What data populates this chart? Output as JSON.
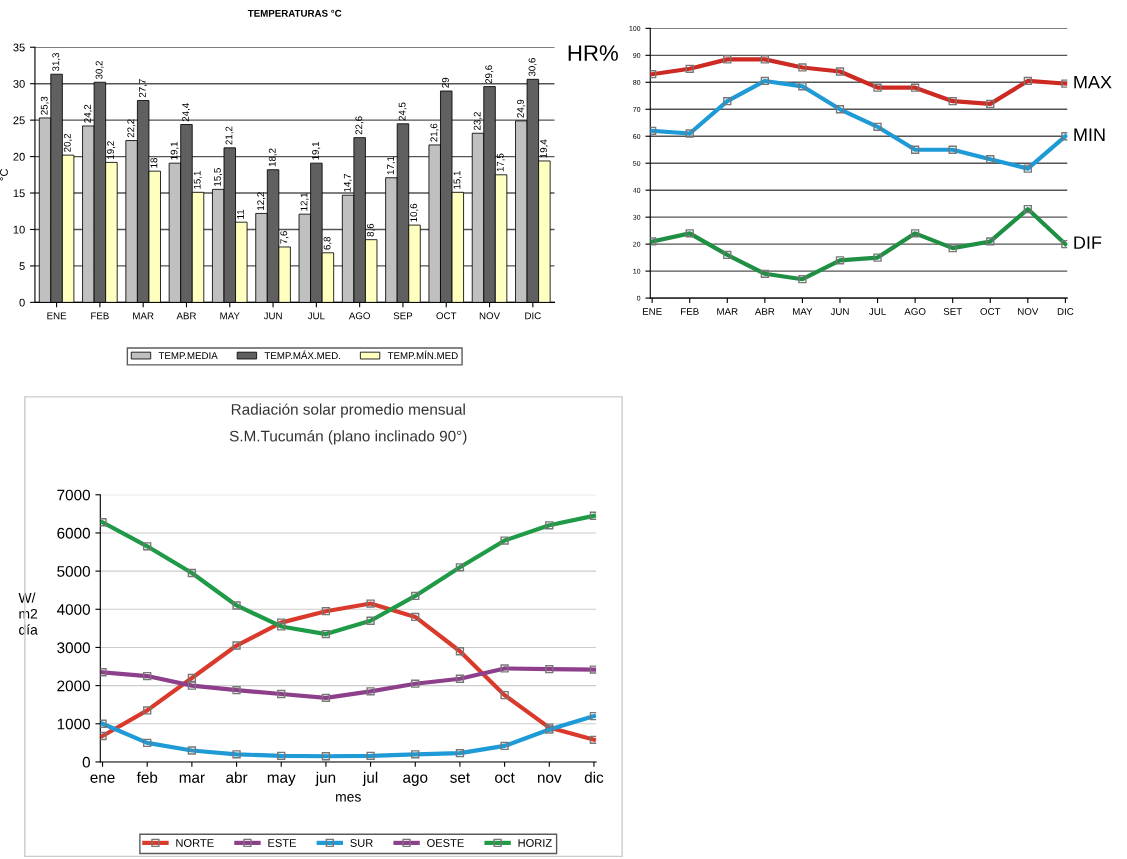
{
  "chart_data": [
    {
      "type": "bar",
      "title": "TEMPERATURAS °C",
      "ylabel": "°C",
      "categories": [
        "ENE",
        "FEB",
        "MAR",
        "ABR",
        "MAY",
        "JUN",
        "JUL",
        "AGO",
        "SEP",
        "OCT",
        "NOV",
        "DIC"
      ],
      "series": [
        {
          "name": "TEMP.MEDIA",
          "color": "#c0c0c0",
          "values": [
            25.3,
            24.2,
            22.2,
            19.1,
            15.5,
            12.2,
            12.1,
            14.7,
            17.1,
            21.6,
            23.2,
            24.9
          ],
          "value_labels": [
            "25,3",
            "24,2",
            "22,2",
            "19,1",
            "15,5",
            "12,2",
            "12,1",
            "14,7",
            "17,1",
            "21,6",
            "23,2",
            "24,9"
          ]
        },
        {
          "name": "TEMP.MÁX.MED.",
          "color": "#606060",
          "values": [
            31.3,
            30.2,
            27.7,
            24.4,
            21.2,
            18.2,
            19.1,
            22.6,
            24.5,
            29,
            29.6,
            30.6
          ],
          "value_labels": [
            "31,3",
            "30,2",
            "27,7",
            "24,4",
            "21,2",
            "18,2",
            "19,1",
            "22,6",
            "24,5",
            "29",
            "29,6",
            "30,6"
          ]
        },
        {
          "name": "TEMP.MÍN.MED",
          "color": "#ffffc0",
          "values": [
            20.2,
            19.2,
            18,
            15.1,
            11,
            7.6,
            6.8,
            8.6,
            10.6,
            15.1,
            17.5,
            19.4
          ],
          "value_labels": [
            "20,2",
            "19,2",
            "18",
            "15,1",
            "11",
            "7,6",
            "6,8",
            "8,6",
            "10,6",
            "15,1",
            "17,5",
            "19,4"
          ]
        }
      ],
      "ylim": [
        0,
        35
      ],
      "yticks": [
        0,
        5,
        10,
        15,
        20,
        25,
        30,
        35
      ],
      "grid": "y",
      "legend": "bottom"
    },
    {
      "type": "line",
      "ylabel": "HR%",
      "categories": [
        "ENE",
        "FEB",
        "MAR",
        "ABR",
        "MAY",
        "JUN",
        "JUL",
        "AGO",
        "SET",
        "OCT",
        "NOV",
        "DIC"
      ],
      "series": [
        {
          "name": "MAX",
          "color": "#cc2a22",
          "values": [
            83,
            85,
            88.5,
            88.5,
            85.5,
            84,
            78,
            78,
            73,
            72,
            80.5,
            79.5
          ]
        },
        {
          "name": "MIN",
          "color": "#1e9ad6",
          "values": [
            62,
            61,
            73,
            80.5,
            78.5,
            70,
            63.5,
            55,
            55,
            51.5,
            48,
            60
          ]
        },
        {
          "name": "DIF",
          "color": "#1f8f44",
          "values": [
            21,
            24,
            16,
            9,
            7,
            14,
            15,
            24,
            18.5,
            21,
            33,
            20
          ]
        }
      ],
      "ylim": [
        0,
        100
      ],
      "yticks": [
        0,
        10,
        20,
        30,
        40,
        50,
        60,
        70,
        80,
        90,
        100
      ],
      "grid": "y",
      "legend": false,
      "marker": "square"
    },
    {
      "type": "line",
      "title": "Radiación solar promedio mensual",
      "subtitle": "S.M.Tucumán (plano inclinado 90°)",
      "xlabel": "mes",
      "ylabel": "W/\nm2\ndía",
      "categories": [
        "ene",
        "feb",
        "mar",
        "abr",
        "may",
        "jun",
        "jul",
        "ago",
        "set",
        "oct",
        "nov",
        "dic"
      ],
      "series": [
        {
          "name": "NORTE",
          "color": "#d93a2b",
          "values": [
            680,
            1350,
            2200,
            3050,
            3650,
            3950,
            4150,
            3800,
            2900,
            1750,
            900,
            580
          ]
        },
        {
          "name": "ESTE",
          "color": "#8e3f8c",
          "values": [
            2350,
            2250,
            2000,
            1880,
            1780,
            1680,
            1850,
            2050,
            2180,
            2450,
            2430,
            2420
          ]
        },
        {
          "name": "SUR",
          "color": "#1e9ad6",
          "values": [
            1000,
            500,
            300,
            200,
            160,
            150,
            160,
            200,
            230,
            420,
            850,
            1200
          ]
        },
        {
          "name": "OESTE",
          "color": "#8e3f8c",
          "values": [
            null,
            null,
            null,
            null,
            null,
            null,
            null,
            null,
            null,
            null,
            null,
            null
          ]
        },
        {
          "name": "HORIZ",
          "color": "#1f9a46",
          "values": [
            6280,
            5650,
            4950,
            4100,
            3550,
            3350,
            3700,
            4350,
            5100,
            5800,
            6200,
            6450
          ]
        }
      ],
      "ylim": [
        0,
        7000
      ],
      "yticks": [
        0,
        1000,
        2000,
        3000,
        4000,
        5000,
        6000,
        7000
      ],
      "grid": "y",
      "legend": "bottom",
      "marker": "square"
    }
  ]
}
